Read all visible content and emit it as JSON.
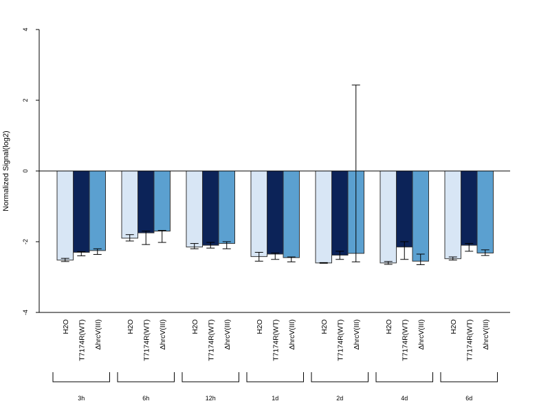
{
  "chart_data": {
    "type": "bar",
    "title": "",
    "xlabel": "",
    "ylabel": "Normalized Signal(log2)",
    "ylim": [
      -4,
      4
    ],
    "yticks": [
      "-4",
      "-2",
      "0",
      "2",
      "4"
    ],
    "grid": false,
    "groups": [
      {
        "label": "3h",
        "values": [
          -2.52,
          -2.3,
          -2.25
        ],
        "err_low": [
          -2.56,
          -2.4,
          -2.36
        ],
        "err_high": [
          -2.47,
          -2.28,
          -2.2
        ]
      },
      {
        "label": "6h",
        "values": [
          -1.9,
          -1.75,
          -1.7
        ],
        "err_low": [
          -1.98,
          -2.08,
          -2.02
        ],
        "err_high": [
          -1.8,
          -1.7,
          -1.68
        ]
      },
      {
        "label": "12h",
        "values": [
          -2.15,
          -2.1,
          -2.05
        ],
        "err_low": [
          -2.2,
          -2.18,
          -2.2
        ],
        "err_high": [
          -2.05,
          -2.02,
          -2.0
        ]
      },
      {
        "label": "1d",
        "values": [
          -2.42,
          -2.35,
          -2.45
        ],
        "err_low": [
          -2.55,
          -2.5,
          -2.57
        ],
        "err_high": [
          -2.3,
          -2.32,
          -2.43
        ]
      },
      {
        "label": "2d",
        "values": [
          -2.6,
          -2.38,
          -2.33
        ],
        "err_low": [
          -2.61,
          -2.5,
          -2.57
        ],
        "err_high": [
          -2.59,
          -2.27,
          2.43
        ]
      },
      {
        "label": "4d",
        "values": [
          -2.6,
          -2.15,
          -2.55
        ],
        "err_low": [
          -2.64,
          -2.5,
          -2.65
        ],
        "err_high": [
          -2.56,
          -2.0,
          -2.35
        ]
      },
      {
        "label": "6d",
        "values": [
          -2.48,
          -2.1,
          -2.32
        ],
        "err_low": [
          -2.52,
          -2.27,
          -2.39
        ],
        "err_high": [
          -2.43,
          -2.05,
          -2.23
        ]
      }
    ],
    "categories": [
      "H2O",
      "T7174R(WT)",
      "ΔhrcV(III)"
    ],
    "colors": [
      "#d8e6f5",
      "#0c2358",
      "#5ba0d0"
    ],
    "bar_border": "#333333",
    "axis_color": "#000000"
  }
}
